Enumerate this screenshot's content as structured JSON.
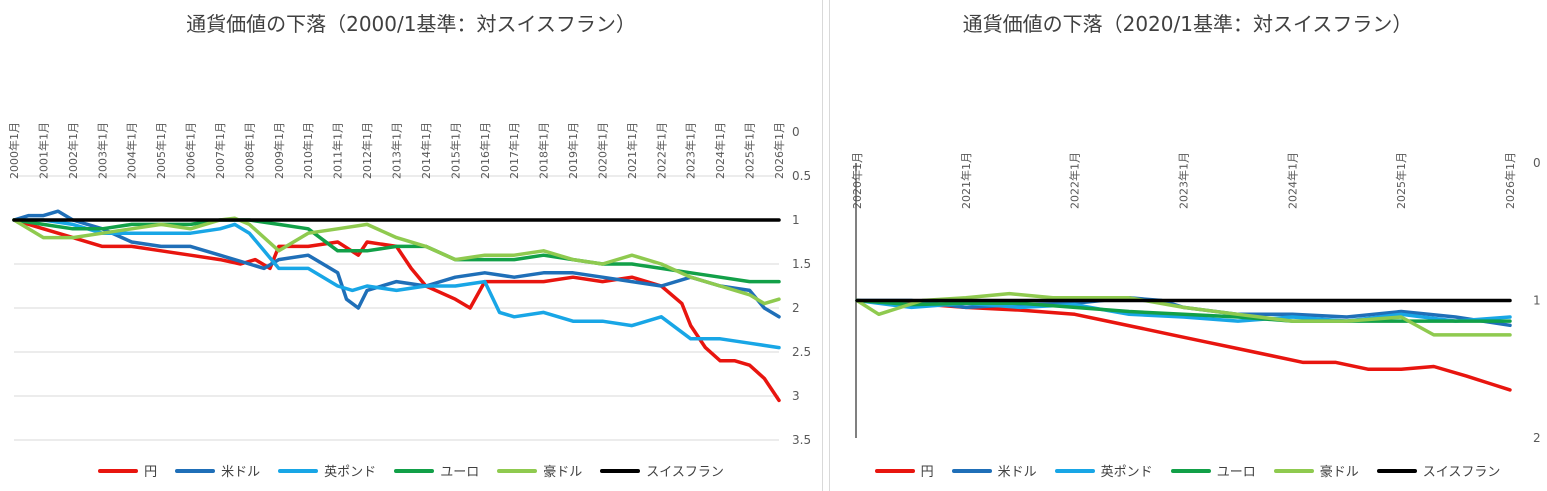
{
  "chart_data": [
    {
      "type": "line",
      "title": "通貨価値の下落（2000/1基準：対スイスフラン）",
      "xlabel": "",
      "ylabel": "",
      "x_ticks": [
        "2000年1月",
        "2001年1月",
        "2002年1月",
        "2003年1月",
        "2004年1月",
        "2005年1月",
        "2006年1月",
        "2007年1月",
        "2008年1月",
        "2009年1月",
        "2010年1月",
        "2011年1月",
        "2012年1月",
        "2013年1月",
        "2014年1月",
        "2015年1月",
        "2016年1月",
        "2017年1月",
        "2018年1月",
        "2019年1月",
        "2020年1月",
        "2021年1月",
        "2022年1月",
        "2023年1月",
        "2024年1月",
        "2025年1月",
        "2026年1月"
      ],
      "y_ticks": [
        "0",
        "0.5",
        "1",
        "1.5",
        "2",
        "2.5",
        "3",
        "3.5"
      ],
      "ylim": [
        0,
        3.5
      ],
      "y_reversed": true,
      "grid": "horizontal",
      "legend_position": "bottom",
      "series": [
        {
          "name": "円",
          "color": "#e8150f",
          "x": [
            2000,
            2001,
            2002,
            2003,
            2004,
            2005,
            2006,
            2007,
            2007.7,
            2008.2,
            2008.7,
            2009,
            2010,
            2011,
            2011.7,
            2012,
            2013,
            2013.5,
            2014,
            2015,
            2015.5,
            2016,
            2017,
            2018,
            2019,
            2020,
            2021,
            2022,
            2022.7,
            2023,
            2023.5,
            2024,
            2024.5,
            2025,
            2025.5,
            2026
          ],
          "y": [
            1.0,
            1.1,
            1.2,
            1.3,
            1.3,
            1.35,
            1.4,
            1.45,
            1.5,
            1.45,
            1.55,
            1.3,
            1.3,
            1.25,
            1.4,
            1.25,
            1.3,
            1.55,
            1.75,
            1.9,
            2.0,
            1.7,
            1.7,
            1.7,
            1.65,
            1.7,
            1.65,
            1.75,
            1.95,
            2.2,
            2.45,
            2.6,
            2.6,
            2.65,
            2.8,
            3.05
          ]
        },
        {
          "name": "米ドル",
          "color": "#1f6fb8",
          "x": [
            2000,
            2000.5,
            2001,
            2001.5,
            2002,
            2003,
            2004,
            2005,
            2006,
            2007,
            2008,
            2008.5,
            2009,
            2010,
            2011,
            2011.3,
            2011.7,
            2012,
            2013,
            2014,
            2015,
            2016,
            2017,
            2018,
            2019,
            2020,
            2021,
            2022,
            2023,
            2024,
            2025,
            2025.5,
            2026
          ],
          "y": [
            1.0,
            0.95,
            0.95,
            0.9,
            1.0,
            1.1,
            1.25,
            1.3,
            1.3,
            1.4,
            1.5,
            1.55,
            1.45,
            1.4,
            1.6,
            1.9,
            2.0,
            1.8,
            1.7,
            1.75,
            1.65,
            1.6,
            1.65,
            1.6,
            1.6,
            1.65,
            1.7,
            1.75,
            1.65,
            1.75,
            1.8,
            2.0,
            2.1
          ]
        },
        {
          "name": "英ポンド",
          "color": "#18a6e6",
          "x": [
            2000,
            2001,
            2002,
            2003,
            2004,
            2005,
            2006,
            2007,
            2007.5,
            2008,
            2008.5,
            2009,
            2010,
            2011,
            2011.5,
            2012,
            2013,
            2014,
            2015,
            2016,
            2016.5,
            2017,
            2018,
            2019,
            2020,
            2021,
            2022,
            2023,
            2024,
            2025,
            2026
          ],
          "y": [
            1.0,
            1.0,
            1.05,
            1.15,
            1.15,
            1.15,
            1.15,
            1.1,
            1.05,
            1.15,
            1.35,
            1.55,
            1.55,
            1.75,
            1.8,
            1.75,
            1.8,
            1.75,
            1.75,
            1.7,
            2.05,
            2.1,
            2.05,
            2.15,
            2.15,
            2.2,
            2.1,
            2.35,
            2.35,
            2.4,
            2.45
          ]
        },
        {
          "name": "ユーロ",
          "color": "#12a048",
          "x": [
            2000,
            2001,
            2002,
            2003,
            2004,
            2005,
            2006,
            2007,
            2008,
            2009,
            2010,
            2011,
            2012,
            2013,
            2014,
            2015,
            2016,
            2017,
            2018,
            2019,
            2020,
            2021,
            2022,
            2023,
            2024,
            2025,
            2026
          ],
          "y": [
            1.0,
            1.05,
            1.1,
            1.1,
            1.05,
            1.05,
            1.05,
            1.0,
            1.0,
            1.05,
            1.1,
            1.35,
            1.35,
            1.3,
            1.3,
            1.45,
            1.45,
            1.45,
            1.4,
            1.45,
            1.5,
            1.5,
            1.55,
            1.6,
            1.65,
            1.7,
            1.7
          ]
        },
        {
          "name": "豪ドル",
          "color": "#8fca4f",
          "x": [
            2000,
            2001,
            2002,
            2003,
            2004,
            2005,
            2006,
            2007,
            2007.5,
            2008,
            2008.5,
            2009,
            2010,
            2011,
            2012,
            2013,
            2014,
            2015,
            2016,
            2017,
            2018,
            2019,
            2020,
            2021,
            2022,
            2023,
            2024,
            2025,
            2025.5,
            2026
          ],
          "y": [
            1.0,
            1.2,
            1.2,
            1.15,
            1.1,
            1.05,
            1.1,
            1.0,
            0.98,
            1.05,
            1.2,
            1.35,
            1.15,
            1.1,
            1.05,
            1.2,
            1.3,
            1.45,
            1.4,
            1.4,
            1.35,
            1.45,
            1.5,
            1.4,
            1.5,
            1.65,
            1.75,
            1.85,
            1.95,
            1.9
          ]
        },
        {
          "name": "スイスフラン",
          "color": "#000000",
          "x": [
            2000,
            2026
          ],
          "y": [
            1.0,
            1.0
          ]
        }
      ]
    },
    {
      "type": "line",
      "title": "通貨価値の下落（2020/1基準：対スイスフラン）",
      "xlabel": "",
      "ylabel": "",
      "x_ticks": [
        "2020年1月",
        "2021年1月",
        "2022年1月",
        "2023年1月",
        "2024年1月",
        "2025年1月",
        "2026年1月"
      ],
      "y_ticks": [
        "0",
        "1",
        "2"
      ],
      "ylim": [
        0,
        2
      ],
      "y_reversed": true,
      "grid": "none",
      "legend_position": "bottom",
      "series": [
        {
          "name": "円",
          "color": "#e8150f",
          "x": [
            2020,
            2020.5,
            2021,
            2021.5,
            2022,
            2022.3,
            2022.6,
            2022.9,
            2023.2,
            2023.5,
            2023.8,
            2024.1,
            2024.4,
            2024.7,
            2025,
            2025.3,
            2025.6,
            2025.8,
            2026
          ],
          "y": [
            1.0,
            1.02,
            1.05,
            1.07,
            1.1,
            1.15,
            1.2,
            1.25,
            1.3,
            1.35,
            1.4,
            1.45,
            1.45,
            1.5,
            1.5,
            1.48,
            1.55,
            1.6,
            1.65
          ]
        },
        {
          "name": "米ドル",
          "color": "#1f6fb8",
          "x": [
            2020,
            2020.5,
            2021,
            2021.5,
            2022,
            2022.5,
            2022.8,
            2023,
            2023.5,
            2024,
            2024.5,
            2025,
            2025.5,
            2026
          ],
          "y": [
            1.0,
            1.0,
            1.05,
            1.03,
            1.02,
            0.98,
            1.0,
            1.05,
            1.1,
            1.1,
            1.12,
            1.08,
            1.12,
            1.18
          ]
        },
        {
          "name": "英ポンド",
          "color": "#18a6e6",
          "x": [
            2020,
            2020.5,
            2021,
            2021.5,
            2022,
            2022.5,
            2023,
            2023.5,
            2024,
            2024.5,
            2025,
            2025.5,
            2026
          ],
          "y": [
            1.0,
            1.05,
            1.02,
            1.05,
            1.03,
            1.1,
            1.12,
            1.15,
            1.12,
            1.15,
            1.1,
            1.15,
            1.12
          ]
        },
        {
          "name": "ユーロ",
          "color": "#12a048",
          "x": [
            2020,
            2020.5,
            2021,
            2021.5,
            2022,
            2022.5,
            2023,
            2023.5,
            2024,
            2024.5,
            2025,
            2025.5,
            2026
          ],
          "y": [
            1.0,
            1.03,
            1.02,
            1.02,
            1.05,
            1.08,
            1.1,
            1.12,
            1.15,
            1.15,
            1.15,
            1.15,
            1.15
          ]
        },
        {
          "name": "豪ドル",
          "color": "#8fca4f",
          "x": [
            2020,
            2020.2,
            2020.6,
            2021,
            2021.4,
            2021.8,
            2022,
            2022.5,
            2023,
            2023.5,
            2024,
            2024.5,
            2025,
            2025.3,
            2025.6,
            2026
          ],
          "y": [
            1.0,
            1.1,
            1.0,
            0.98,
            0.95,
            0.98,
            0.98,
            0.98,
            1.05,
            1.1,
            1.15,
            1.15,
            1.12,
            1.25,
            1.25,
            1.25
          ]
        },
        {
          "name": "スイスフラン",
          "color": "#000000",
          "x": [
            2020,
            2026
          ],
          "y": [
            1.0,
            1.0
          ]
        }
      ]
    }
  ]
}
